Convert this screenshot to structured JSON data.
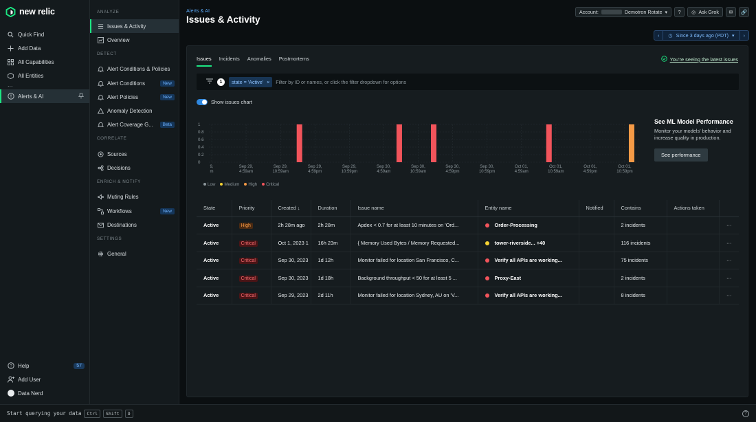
{
  "brand": "new relic",
  "leftnav": {
    "items": [
      {
        "label": "Quick Find",
        "icon": "search-icon"
      },
      {
        "label": "Add Data",
        "icon": "plus-icon"
      },
      {
        "label": "All Capabilities",
        "icon": "grid-icon"
      },
      {
        "label": "All Entities",
        "icon": "hexagon-icon"
      }
    ],
    "more": "...",
    "active_item": "Alerts & AI",
    "bottom": [
      {
        "label": "Help",
        "badge": "57"
      },
      {
        "label": "Add User"
      },
      {
        "label": "Data Nerd"
      }
    ]
  },
  "secnav": {
    "analyze": "ANALYZE",
    "analyze_items": [
      "Issues & Activity",
      "Overview"
    ],
    "detect": "DETECT",
    "detect_items": [
      {
        "label": "Alert Conditions & Policies",
        "tag": ""
      },
      {
        "label": "Alert Conditions",
        "tag": "New"
      },
      {
        "label": "Alert Policies",
        "tag": "New"
      },
      {
        "label": "Anomaly Detection",
        "tag": ""
      },
      {
        "label": "Alert Coverage G...",
        "tag": "Beta"
      }
    ],
    "correlate": "CORRELATE",
    "correlate_items": [
      "Sources",
      "Decisions"
    ],
    "enrich": "ENRICH & NOTIFY",
    "enrich_items": [
      {
        "label": "Muting Rules",
        "tag": ""
      },
      {
        "label": "Workflows",
        "tag": "New"
      },
      {
        "label": "Destinations",
        "tag": ""
      }
    ],
    "settings": "SETTINGS",
    "settings_items": [
      "General"
    ]
  },
  "header": {
    "breadcrumb": "Alerts & AI",
    "title": "Issues & Activity",
    "account_label": "Account:",
    "account_name": "Demotron Rotate",
    "ask_grok": "Ask Grok",
    "time_range": "Since 3 days ago (PDT)"
  },
  "tabs": [
    "Issues",
    "Incidents",
    "Anomalies",
    "Postmortems"
  ],
  "latest_text": "You're seeing the latest issues",
  "filter": {
    "count": "1",
    "chip": "state = 'Active'",
    "placeholder": "Filter by ID or names, or click the filter dropdown for options"
  },
  "toggle_label": "Show issues chart",
  "chart_data": {
    "type": "bar",
    "y_ticks": [
      "1",
      "0.8",
      "0.6",
      "0.4",
      "0.2",
      "0"
    ],
    "ylim": [
      0,
      1
    ],
    "x_ticks": [
      [
        "9,",
        "m"
      ],
      [
        "Sep 29,",
        "4:59am"
      ],
      [
        "Sep 29,",
        "10:59am"
      ],
      [
        "Sep 29,",
        "4:59pm"
      ],
      [
        "Sep 29,",
        "10:59pm"
      ],
      [
        "Sep 30,",
        "4:59am"
      ],
      [
        "Sep 30,",
        "10:59am"
      ],
      [
        "Sep 30,",
        "4:59pm"
      ],
      [
        "Sep 30,",
        "10:59pm"
      ],
      [
        "Oct 01,",
        "4:59am"
      ],
      [
        "Oct 01,",
        "10:59am"
      ],
      [
        "Oct 01,",
        "4:59pm"
      ],
      [
        "Oct 01,",
        "10:59pm"
      ]
    ],
    "bars": [
      {
        "x": 2.55,
        "value": 1,
        "priority": "Critical"
      },
      {
        "x": 5.45,
        "value": 1,
        "priority": "Critical"
      },
      {
        "x": 6.45,
        "value": 1,
        "priority": "Critical"
      },
      {
        "x": 9.8,
        "value": 1,
        "priority": "Critical"
      },
      {
        "x": 12.2,
        "value": 1,
        "priority": "High"
      }
    ],
    "legend": [
      "Low",
      "Medium",
      "High",
      "Critical"
    ],
    "legend_colors": [
      "#8d979c",
      "#f5d233",
      "#f59a46",
      "#f2545b"
    ]
  },
  "ml_card": {
    "title": "See ML Model Performance",
    "text": "Monitor your models' behavior and increase quality in production.",
    "button": "See performance"
  },
  "table": {
    "columns": [
      "State",
      "Priority",
      "Created",
      "Duration",
      "Issue name",
      "Entity name",
      "Notified",
      "Contains",
      "Actions taken"
    ],
    "rows": [
      {
        "state": "Active",
        "priority": "High",
        "created": "2h 28m ago",
        "duration": "2h 28m",
        "issue": "Apdex < 0.7 for at least 10 minutes on 'Ord...",
        "entity": "Order-Processing",
        "entity_color": "#f2545b",
        "notified": "",
        "contains": "2 incidents"
      },
      {
        "state": "Active",
        "priority": "Critical",
        "created": "Oct 1, 2023 1",
        "duration": "16h 23m",
        "issue": "{ Memory Used Bytes / Memory Requested...",
        "entity": "tower-riverside... +40",
        "entity_color": "#f5d233",
        "notified": "",
        "contains": "116 incidents"
      },
      {
        "state": "Active",
        "priority": "Critical",
        "created": "Sep 30, 2023",
        "duration": "1d 12h",
        "issue": "Monitor failed for location San Francisco, C...",
        "entity": "Verify all APIs are working... ",
        "entity_color": "#f2545b",
        "notified": "",
        "contains": "75 incidents"
      },
      {
        "state": "Active",
        "priority": "Critical",
        "created": "Sep 30, 2023",
        "duration": "1d 18h",
        "issue": "Background throughput < 50 for at least 5 ...",
        "entity": "Proxy-East",
        "entity_color": "#f2545b",
        "notified": "",
        "contains": "2 incidents"
      },
      {
        "state": "Active",
        "priority": "Critical",
        "created": "Sep 29, 2023",
        "duration": "2d 11h",
        "issue": "Monitor failed for location Sydney, AU on 'V...",
        "entity": "Verify all APIs are working... ",
        "entity_color": "#f2545b",
        "notified": "",
        "contains": "8 incidents"
      }
    ],
    "more": "···"
  },
  "footer": {
    "prompt": "Start querying your data",
    "keys": [
      "Ctrl",
      "Shift",
      "O"
    ]
  }
}
